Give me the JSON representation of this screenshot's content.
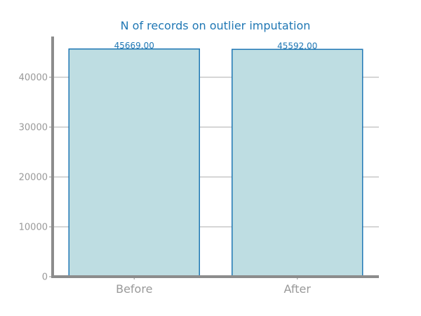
{
  "chart_data": {
    "type": "bar",
    "title": "N of records on outlier imputation",
    "categories": [
      "Before",
      "After"
    ],
    "values": [
      45669.0,
      45592.0
    ],
    "value_labels": [
      "45669.00",
      "45592.00"
    ],
    "ylim": [
      0,
      48000
    ],
    "yticks": [
      0,
      10000,
      20000,
      30000,
      40000
    ],
    "ytick_labels": [
      "0",
      "10000",
      "20000",
      "30000",
      "40000"
    ],
    "xlabel": "",
    "ylabel": "",
    "grid": "horizontal"
  },
  "colors": {
    "title": "#1f77b4",
    "bar_fill": "#bedde2",
    "bar_edge": "#1f77b4",
    "label": "#1f77b4",
    "axis": "#8c8c8c",
    "tick_text": "#999999",
    "grid": "#c8c8c8"
  }
}
